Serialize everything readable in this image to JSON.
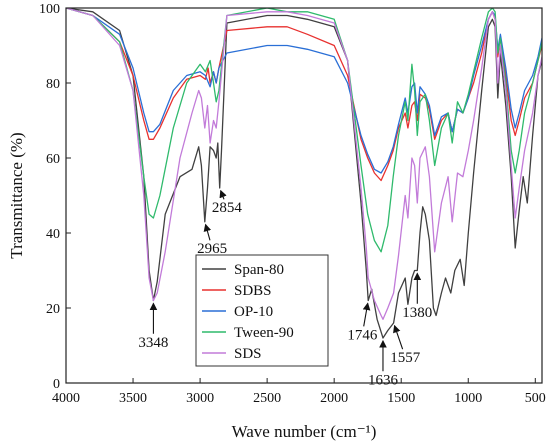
{
  "chart_data": {
    "type": "line",
    "xlabel": "Wave number (cm⁻¹)",
    "ylabel": "Transmittance (%)",
    "xlim": [
      4000,
      450
    ],
    "ylim": [
      0,
      100
    ],
    "x_ticks": [
      4000,
      3500,
      3000,
      2500,
      2000,
      1500,
      1000,
      500
    ],
    "y_ticks": [
      0,
      20,
      40,
      60,
      80,
      100
    ],
    "grid": false,
    "legend_position": "lower-center",
    "series": [
      {
        "name": "Span-80",
        "color": "#404040",
        "points": [
          [
            4000,
            100
          ],
          [
            3800,
            99
          ],
          [
            3600,
            94
          ],
          [
            3500,
            82
          ],
          [
            3420,
            55
          ],
          [
            3380,
            30
          ],
          [
            3348,
            22
          ],
          [
            3320,
            27
          ],
          [
            3260,
            45
          ],
          [
            3150,
            55
          ],
          [
            3060,
            57
          ],
          [
            3010,
            63
          ],
          [
            2990,
            58
          ],
          [
            2965,
            43
          ],
          [
            2945,
            52
          ],
          [
            2925,
            63
          ],
          [
            2900,
            62
          ],
          [
            2880,
            60
          ],
          [
            2868,
            64
          ],
          [
            2854,
            52
          ],
          [
            2840,
            62
          ],
          [
            2800,
            96
          ],
          [
            2500,
            98
          ],
          [
            2350,
            98
          ],
          [
            2200,
            97
          ],
          [
            2000,
            95
          ],
          [
            1900,
            86
          ],
          [
            1800,
            48
          ],
          [
            1760,
            30
          ],
          [
            1746,
            22
          ],
          [
            1720,
            25
          ],
          [
            1680,
            17
          ],
          [
            1636,
            12
          ],
          [
            1600,
            14
          ],
          [
            1557,
            16
          ],
          [
            1520,
            24
          ],
          [
            1470,
            28
          ],
          [
            1450,
            21
          ],
          [
            1420,
            28
          ],
          [
            1400,
            30
          ],
          [
            1380,
            30
          ],
          [
            1360,
            40
          ],
          [
            1340,
            47
          ],
          [
            1320,
            45
          ],
          [
            1290,
            38
          ],
          [
            1260,
            20
          ],
          [
            1240,
            18
          ],
          [
            1200,
            24
          ],
          [
            1170,
            28
          ],
          [
            1130,
            24
          ],
          [
            1100,
            30
          ],
          [
            1060,
            33
          ],
          [
            1030,
            26
          ],
          [
            1000,
            40
          ],
          [
            960,
            56
          ],
          [
            900,
            78
          ],
          [
            850,
            95
          ],
          [
            820,
            97
          ],
          [
            800,
            95
          ],
          [
            780,
            76
          ],
          [
            760,
            88
          ],
          [
            720,
            74
          ],
          [
            680,
            55
          ],
          [
            650,
            36
          ],
          [
            620,
            46
          ],
          [
            590,
            55
          ],
          [
            560,
            48
          ],
          [
            520,
            66
          ],
          [
            480,
            82
          ],
          [
            450,
            86
          ]
        ]
      },
      {
        "name": "SDBS",
        "color": "#e8312f",
        "points": [
          [
            4000,
            100
          ],
          [
            3800,
            98
          ],
          [
            3600,
            91
          ],
          [
            3500,
            82
          ],
          [
            3420,
            70
          ],
          [
            3380,
            65
          ],
          [
            3348,
            65
          ],
          [
            3300,
            68
          ],
          [
            3200,
            76
          ],
          [
            3100,
            81
          ],
          [
            3000,
            82
          ],
          [
            2960,
            81
          ],
          [
            2940,
            84
          ],
          [
            2925,
            80
          ],
          [
            2900,
            83
          ],
          [
            2880,
            80
          ],
          [
            2860,
            84
          ],
          [
            2800,
            94
          ],
          [
            2500,
            95
          ],
          [
            2350,
            95
          ],
          [
            2200,
            93
          ],
          [
            2000,
            90
          ],
          [
            1900,
            82
          ],
          [
            1800,
            65
          ],
          [
            1750,
            60
          ],
          [
            1700,
            56
          ],
          [
            1650,
            54
          ],
          [
            1600,
            58
          ],
          [
            1560,
            62
          ],
          [
            1520,
            68
          ],
          [
            1470,
            72
          ],
          [
            1450,
            68
          ],
          [
            1420,
            74
          ],
          [
            1400,
            75
          ],
          [
            1380,
            70
          ],
          [
            1360,
            77
          ],
          [
            1320,
            76
          ],
          [
            1290,
            73
          ],
          [
            1250,
            65
          ],
          [
            1200,
            70
          ],
          [
            1150,
            72
          ],
          [
            1120,
            67
          ],
          [
            1080,
            73
          ],
          [
            1040,
            72
          ],
          [
            1000,
            76
          ],
          [
            960,
            80
          ],
          [
            900,
            88
          ],
          [
            850,
            97
          ],
          [
            820,
            99
          ],
          [
            800,
            97
          ],
          [
            780,
            87
          ],
          [
            760,
            92
          ],
          [
            720,
            82
          ],
          [
            680,
            70
          ],
          [
            650,
            66
          ],
          [
            620,
            70
          ],
          [
            580,
            76
          ],
          [
            520,
            80
          ],
          [
            480,
            86
          ],
          [
            450,
            90
          ]
        ]
      },
      {
        "name": "OP-10",
        "color": "#2a6fd6",
        "points": [
          [
            4000,
            100
          ],
          [
            3800,
            98
          ],
          [
            3600,
            93
          ],
          [
            3500,
            84
          ],
          [
            3420,
            72
          ],
          [
            3380,
            67
          ],
          [
            3348,
            67
          ],
          [
            3300,
            69
          ],
          [
            3200,
            78
          ],
          [
            3100,
            82
          ],
          [
            3000,
            83
          ],
          [
            2960,
            82
          ],
          [
            2925,
            79
          ],
          [
            2900,
            83
          ],
          [
            2880,
            80
          ],
          [
            2860,
            84
          ],
          [
            2800,
            88
          ],
          [
            2500,
            90
          ],
          [
            2350,
            90
          ],
          [
            2200,
            89
          ],
          [
            2000,
            87
          ],
          [
            1900,
            80
          ],
          [
            1800,
            66
          ],
          [
            1750,
            61
          ],
          [
            1700,
            57
          ],
          [
            1650,
            56
          ],
          [
            1600,
            59
          ],
          [
            1560,
            63
          ],
          [
            1520,
            69
          ],
          [
            1470,
            76
          ],
          [
            1450,
            72
          ],
          [
            1420,
            79
          ],
          [
            1400,
            80
          ],
          [
            1380,
            72
          ],
          [
            1360,
            79
          ],
          [
            1320,
            77
          ],
          [
            1290,
            74
          ],
          [
            1250,
            66
          ],
          [
            1200,
            71
          ],
          [
            1150,
            72
          ],
          [
            1120,
            67
          ],
          [
            1080,
            73
          ],
          [
            1040,
            72
          ],
          [
            1000,
            76
          ],
          [
            960,
            82
          ],
          [
            900,
            90
          ],
          [
            850,
            97
          ],
          [
            820,
            99
          ],
          [
            800,
            98
          ],
          [
            780,
            89
          ],
          [
            760,
            93
          ],
          [
            720,
            84
          ],
          [
            680,
            73
          ],
          [
            650,
            68
          ],
          [
            620,
            72
          ],
          [
            580,
            78
          ],
          [
            520,
            82
          ],
          [
            480,
            87
          ],
          [
            450,
            92
          ]
        ]
      },
      {
        "name": "Tween-90",
        "color": "#2fba6c",
        "points": [
          [
            4000,
            100
          ],
          [
            3800,
            98
          ],
          [
            3600,
            91
          ],
          [
            3500,
            78
          ],
          [
            3420,
            55
          ],
          [
            3380,
            45
          ],
          [
            3348,
            44
          ],
          [
            3300,
            50
          ],
          [
            3200,
            68
          ],
          [
            3100,
            80
          ],
          [
            3000,
            85
          ],
          [
            2960,
            83
          ],
          [
            2925,
            86
          ],
          [
            2900,
            80
          ],
          [
            2880,
            75
          ],
          [
            2860,
            78
          ],
          [
            2800,
            98
          ],
          [
            2500,
            100
          ],
          [
            2350,
            99
          ],
          [
            2200,
            99
          ],
          [
            2000,
            97
          ],
          [
            1900,
            86
          ],
          [
            1800,
            58
          ],
          [
            1750,
            45
          ],
          [
            1700,
            38
          ],
          [
            1650,
            35
          ],
          [
            1600,
            42
          ],
          [
            1560,
            55
          ],
          [
            1520,
            66
          ],
          [
            1470,
            75
          ],
          [
            1450,
            70
          ],
          [
            1420,
            85
          ],
          [
            1400,
            78
          ],
          [
            1380,
            66
          ],
          [
            1360,
            75
          ],
          [
            1320,
            77
          ],
          [
            1290,
            70
          ],
          [
            1250,
            58
          ],
          [
            1200,
            68
          ],
          [
            1150,
            72
          ],
          [
            1120,
            64
          ],
          [
            1080,
            75
          ],
          [
            1040,
            72
          ],
          [
            1000,
            77
          ],
          [
            960,
            83
          ],
          [
            900,
            92
          ],
          [
            850,
            99
          ],
          [
            820,
            100
          ],
          [
            800,
            99
          ],
          [
            780,
            88
          ],
          [
            760,
            92
          ],
          [
            720,
            80
          ],
          [
            680,
            62
          ],
          [
            650,
            56
          ],
          [
            620,
            62
          ],
          [
            580,
            72
          ],
          [
            520,
            80
          ],
          [
            480,
            86
          ],
          [
            450,
            91
          ]
        ]
      },
      {
        "name": "SDS",
        "color": "#c27bd9",
        "points": [
          [
            4000,
            100
          ],
          [
            3800,
            98
          ],
          [
            3600,
            90
          ],
          [
            3500,
            78
          ],
          [
            3420,
            50
          ],
          [
            3380,
            28
          ],
          [
            3348,
            22
          ],
          [
            3320,
            24
          ],
          [
            3260,
            35
          ],
          [
            3150,
            60
          ],
          [
            3060,
            72
          ],
          [
            3010,
            78
          ],
          [
            2990,
            76
          ],
          [
            2965,
            68
          ],
          [
            2945,
            74
          ],
          [
            2925,
            64
          ],
          [
            2900,
            70
          ],
          [
            2880,
            68
          ],
          [
            2860,
            75
          ],
          [
            2800,
            98
          ],
          [
            2500,
            99
          ],
          [
            2350,
            99
          ],
          [
            2200,
            98
          ],
          [
            2000,
            96
          ],
          [
            1900,
            86
          ],
          [
            1800,
            52
          ],
          [
            1760,
            36
          ],
          [
            1746,
            28
          ],
          [
            1700,
            22
          ],
          [
            1650,
            18
          ],
          [
            1636,
            17
          ],
          [
            1600,
            20
          ],
          [
            1557,
            24
          ],
          [
            1520,
            34
          ],
          [
            1470,
            50
          ],
          [
            1450,
            44
          ],
          [
            1420,
            60
          ],
          [
            1400,
            58
          ],
          [
            1380,
            48
          ],
          [
            1360,
            60
          ],
          [
            1320,
            63
          ],
          [
            1290,
            55
          ],
          [
            1250,
            35
          ],
          [
            1200,
            48
          ],
          [
            1150,
            55
          ],
          [
            1120,
            43
          ],
          [
            1080,
            56
          ],
          [
            1040,
            55
          ],
          [
            1000,
            62
          ],
          [
            960,
            70
          ],
          [
            900,
            84
          ],
          [
            850,
            97
          ],
          [
            820,
            99
          ],
          [
            800,
            97
          ],
          [
            780,
            80
          ],
          [
            760,
            90
          ],
          [
            720,
            78
          ],
          [
            680,
            58
          ],
          [
            650,
            44
          ],
          [
            620,
            52
          ],
          [
            580,
            62
          ],
          [
            520,
            72
          ],
          [
            480,
            82
          ],
          [
            450,
            87
          ]
        ]
      }
    ],
    "annotations": [
      {
        "text": "2854",
        "x": 2854,
        "y": 52,
        "label_x": 2800,
        "label_y": 47
      },
      {
        "text": "2965",
        "x": 2965,
        "y": 43,
        "label_x": 2910,
        "label_y": 36
      },
      {
        "text": "3348",
        "x": 3348,
        "y": 22,
        "label_x": 3348,
        "label_y": 11
      },
      {
        "text": "1746",
        "x": 1746,
        "y": 22,
        "label_x": 1790,
        "label_y": 13
      },
      {
        "text": "1636",
        "x": 1636,
        "y": 12,
        "label_x": 1636,
        "label_y": 1
      },
      {
        "text": "1557",
        "x": 1557,
        "y": 16,
        "label_x": 1470,
        "label_y": 7
      },
      {
        "text": "1380",
        "x": 1380,
        "y": 30,
        "label_x": 1380,
        "label_y": 19
      }
    ]
  }
}
